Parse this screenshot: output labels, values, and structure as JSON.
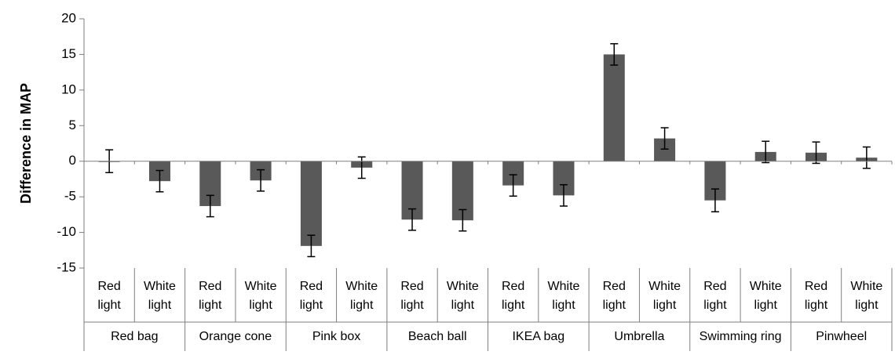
{
  "chart_data": {
    "type": "bar",
    "title": "",
    "ylabel": "Difference in MAP",
    "ylim": [
      -15,
      20
    ],
    "yticks": [
      "20",
      "15",
      "10",
      "5",
      "0",
      "-5",
      "-10",
      "-15"
    ],
    "ytick_values": [
      20,
      15,
      10,
      5,
      0,
      -5,
      -10,
      -15
    ],
    "grid": false,
    "legend": "none",
    "bar_color": "#595959",
    "groups": [
      {
        "name": "Red bag",
        "conditions": [
          {
            "label_line1": "Red",
            "label_line2": "light",
            "value": 0.0,
            "error": 1.6
          },
          {
            "label_line1": "White",
            "label_line2": "light",
            "value": -2.8,
            "error": 1.5
          }
        ]
      },
      {
        "name": "Orange cone",
        "conditions": [
          {
            "label_line1": "Red",
            "label_line2": "light",
            "value": -6.3,
            "error": 1.5
          },
          {
            "label_line1": "White",
            "label_line2": "light",
            "value": -2.7,
            "error": 1.5
          }
        ]
      },
      {
        "name": "Pink box",
        "conditions": [
          {
            "label_line1": "Red",
            "label_line2": "light",
            "value": -11.9,
            "error": 1.5
          },
          {
            "label_line1": "White",
            "label_line2": "light",
            "value": -0.9,
            "error": 1.5
          }
        ]
      },
      {
        "name": "Beach ball",
        "conditions": [
          {
            "label_line1": "Red",
            "label_line2": "light",
            "value": -8.2,
            "error": 1.5
          },
          {
            "label_line1": "White",
            "label_line2": "light",
            "value": -8.3,
            "error": 1.5
          }
        ]
      },
      {
        "name": "IKEA bag",
        "conditions": [
          {
            "label_line1": "Red",
            "label_line2": "light",
            "value": -3.4,
            "error": 1.5
          },
          {
            "label_line1": "White",
            "label_line2": "light",
            "value": -4.8,
            "error": 1.5
          }
        ]
      },
      {
        "name": "Umbrella",
        "conditions": [
          {
            "label_line1": "Red",
            "label_line2": "light",
            "value": 15.0,
            "error": 1.5
          },
          {
            "label_line1": "White",
            "label_line2": "light",
            "value": 3.2,
            "error": 1.5
          }
        ]
      },
      {
        "name": "Swimming ring",
        "conditions": [
          {
            "label_line1": "Red",
            "label_line2": "light",
            "value": -5.5,
            "error": 1.6
          },
          {
            "label_line1": "White",
            "label_line2": "light",
            "value": 1.3,
            "error": 1.5
          }
        ]
      },
      {
        "name": "Pinwheel",
        "conditions": [
          {
            "label_line1": "Red",
            "label_line2": "light",
            "value": 1.2,
            "error": 1.5
          },
          {
            "label_line1": "White",
            "label_line2": "light",
            "value": 0.5,
            "error": 1.5
          }
        ]
      }
    ]
  }
}
